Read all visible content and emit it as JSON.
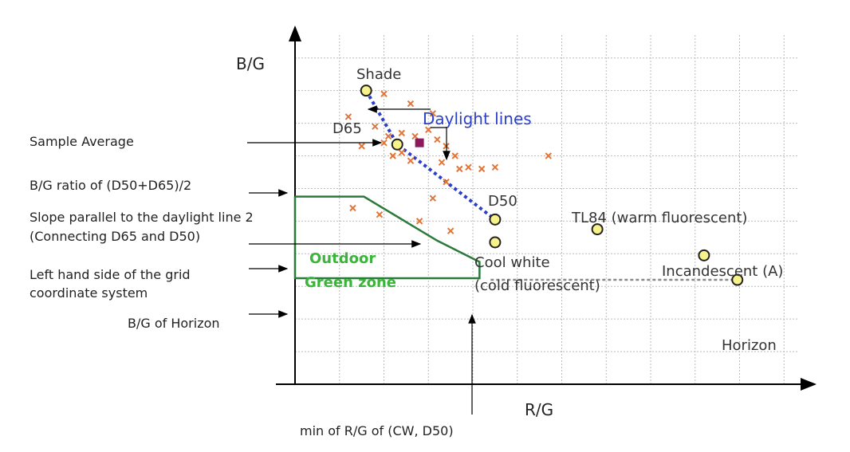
{
  "chart_data": {
    "type": "scatter",
    "title": "",
    "xlabel": "R/G",
    "ylabel": "B/G",
    "grid": true,
    "illuminants": [
      {
        "name": "Shade",
        "x": 1.6,
        "y": 9.0
      },
      {
        "name": "D65",
        "x": 2.3,
        "y": 7.35
      },
      {
        "name": "D50",
        "x": 4.5,
        "y": 5.05
      },
      {
        "name": "Cool white",
        "x": 4.5,
        "y": 4.35
      },
      {
        "name": "TL84 (warm fluorescent)",
        "x": 6.8,
        "y": 4.75
      },
      {
        "name": "Incandescent (A)",
        "x": 9.2,
        "y": 3.95
      },
      {
        "name": "Horizon",
        "x": 9.95,
        "y": 3.2
      }
    ],
    "sample_average": {
      "x": 2.8,
      "y": 7.4
    },
    "samples": [
      {
        "x": 1.2,
        "y": 8.2
      },
      {
        "x": 2.0,
        "y": 8.9
      },
      {
        "x": 2.6,
        "y": 8.6
      },
      {
        "x": 3.1,
        "y": 8.3
      },
      {
        "x": 1.8,
        "y": 7.9
      },
      {
        "x": 2.1,
        "y": 7.6
      },
      {
        "x": 2.4,
        "y": 7.7
      },
      {
        "x": 2.7,
        "y": 7.6
      },
      {
        "x": 3.0,
        "y": 7.8
      },
      {
        "x": 3.2,
        "y": 7.5
      },
      {
        "x": 1.5,
        "y": 7.3
      },
      {
        "x": 2.0,
        "y": 7.4
      },
      {
        "x": 2.4,
        "y": 7.1
      },
      {
        "x": 3.4,
        "y": 7.3
      },
      {
        "x": 2.2,
        "y": 7.0
      },
      {
        "x": 3.6,
        "y": 7.0
      },
      {
        "x": 3.3,
        "y": 6.8
      },
      {
        "x": 2.6,
        "y": 6.85
      },
      {
        "x": 3.9,
        "y": 6.65
      },
      {
        "x": 4.2,
        "y": 6.6
      },
      {
        "x": 4.5,
        "y": 6.65
      },
      {
        "x": 3.7,
        "y": 6.6
      },
      {
        "x": 5.7,
        "y": 7.0
      },
      {
        "x": 3.4,
        "y": 6.2
      },
      {
        "x": 3.1,
        "y": 5.7
      },
      {
        "x": 1.3,
        "y": 5.4
      },
      {
        "x": 1.9,
        "y": 5.2
      },
      {
        "x": 2.8,
        "y": 5.0
      },
      {
        "x": 3.5,
        "y": 4.7
      }
    ],
    "daylight_line": [
      [
        1.6,
        9.0
      ],
      [
        2.3,
        7.35
      ],
      [
        4.5,
        5.05
      ]
    ],
    "horizon_line": [
      [
        4.4,
        3.2
      ],
      [
        9.95,
        3.2
      ]
    ],
    "green_zone": [
      [
        0,
        5.75
      ],
      [
        1.55,
        5.75
      ],
      [
        3.2,
        4.4
      ],
      [
        4.15,
        3.75
      ],
      [
        4.15,
        3.25
      ],
      [
        0,
        3.25
      ]
    ],
    "xlim": [
      0,
      11.3
    ],
    "ylim": [
      0,
      10.8
    ],
    "annotations": {
      "daylight_lines": "Daylight lines",
      "outdoor_line1": "Outdoor",
      "outdoor_line2": "Green zone",
      "cool_white_sub": "(cold fluorescent)",
      "min_rg": "min of R/G of (CW, D50)"
    },
    "left_labels": {
      "sample_average": "Sample Average",
      "bg_ratio": "B/G ratio of (D50+D65)/2",
      "slope_line1": "Slope parallel to the daylight line 2",
      "slope_line2": "(Connecting D65 and D50)",
      "left_hand_line1": "Left hand side of the grid",
      "left_hand_line2": "coordinate system",
      "bg_horizon": "B/G of Horizon"
    },
    "colors": {
      "daylight_line": "#2b3fc9",
      "green_zone": "#2a7a3a",
      "sample_marker": "#e0763a",
      "illuminant_fill": "#f7f38a",
      "average_marker": "#8b1a5c"
    }
  }
}
